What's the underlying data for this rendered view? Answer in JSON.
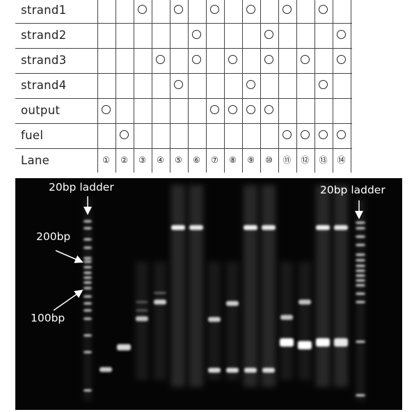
{
  "table": {
    "rows": [
      {
        "label": "strand1",
        "marks": [
          3,
          5,
          7,
          9,
          11,
          13
        ]
      },
      {
        "label": "strand2",
        "marks": [
          6,
          10,
          14
        ]
      },
      {
        "label": "strand3",
        "marks": [
          4,
          6,
          8,
          10,
          12,
          14
        ]
      },
      {
        "label": "strand4",
        "marks": [
          5,
          9,
          13
        ]
      },
      {
        "label": "output",
        "marks": [
          1,
          7,
          8,
          9,
          10
        ]
      },
      {
        "label": "fuel",
        "marks": [
          2,
          11,
          12,
          13,
          14
        ]
      }
    ],
    "lane_row": {
      "label": "Lane",
      "numbers": [
        "①",
        "②",
        "③",
        "④",
        "⑤",
        "⑥",
        "⑦",
        "⑧",
        "⑨",
        "⑩",
        "⑪",
        "⑫",
        "⑬",
        "⑭"
      ]
    }
  },
  "gel": {
    "label_ladder_left": "20bp ladder",
    "label_ladder_right": "20bp ladder",
    "label_200bp": "200bp",
    "label_100bp": "100bp",
    "arrow_icon": "arrow-icon",
    "background_color": "#050505",
    "band_color": "#ffffff"
  }
}
